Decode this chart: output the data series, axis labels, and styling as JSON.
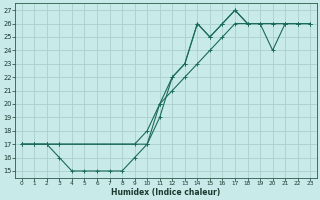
{
  "xlabel": "Humidex (Indice chaleur)",
  "bg_color": "#c8eae8",
  "grid_color": "#aacfcc",
  "line_color": "#1a6b5a",
  "xlim": [
    -0.5,
    23.5
  ],
  "ylim": [
    14.5,
    27.5
  ],
  "xticks": [
    0,
    1,
    2,
    3,
    4,
    5,
    6,
    7,
    8,
    9,
    10,
    11,
    12,
    13,
    14,
    15,
    16,
    17,
    18,
    19,
    20,
    21,
    22,
    23
  ],
  "yticks": [
    15,
    16,
    17,
    18,
    19,
    20,
    21,
    22,
    23,
    24,
    25,
    26,
    27
  ],
  "line1_x": [
    0,
    1,
    2,
    3,
    4,
    5,
    6,
    7,
    8,
    9,
    10,
    11,
    12,
    13,
    14,
    15,
    16,
    17,
    18,
    19,
    20,
    21,
    22,
    23
  ],
  "line1_y": [
    17,
    17,
    17,
    16,
    15,
    15,
    15,
    15,
    15,
    16,
    17,
    19,
    22,
    23,
    26,
    25,
    26,
    27,
    26,
    26,
    26,
    26,
    26,
    26
  ],
  "line2_x": [
    0,
    1,
    2,
    3,
    9,
    10,
    11,
    12,
    13,
    14,
    15,
    16,
    17,
    18,
    19,
    20,
    21,
    22,
    23
  ],
  "line2_y": [
    17,
    17,
    17,
    17,
    17,
    18,
    20,
    21,
    22,
    23,
    24,
    25,
    26,
    26,
    26,
    26,
    26,
    26,
    26
  ],
  "line3_x": [
    0,
    1,
    2,
    3,
    10,
    11,
    12,
    13,
    14,
    15,
    16,
    17,
    18,
    19,
    20,
    21,
    22,
    23
  ],
  "line3_y": [
    17,
    17,
    17,
    17,
    17,
    20,
    22,
    23,
    26,
    25,
    26,
    27,
    26,
    26,
    24,
    26,
    26,
    26
  ]
}
